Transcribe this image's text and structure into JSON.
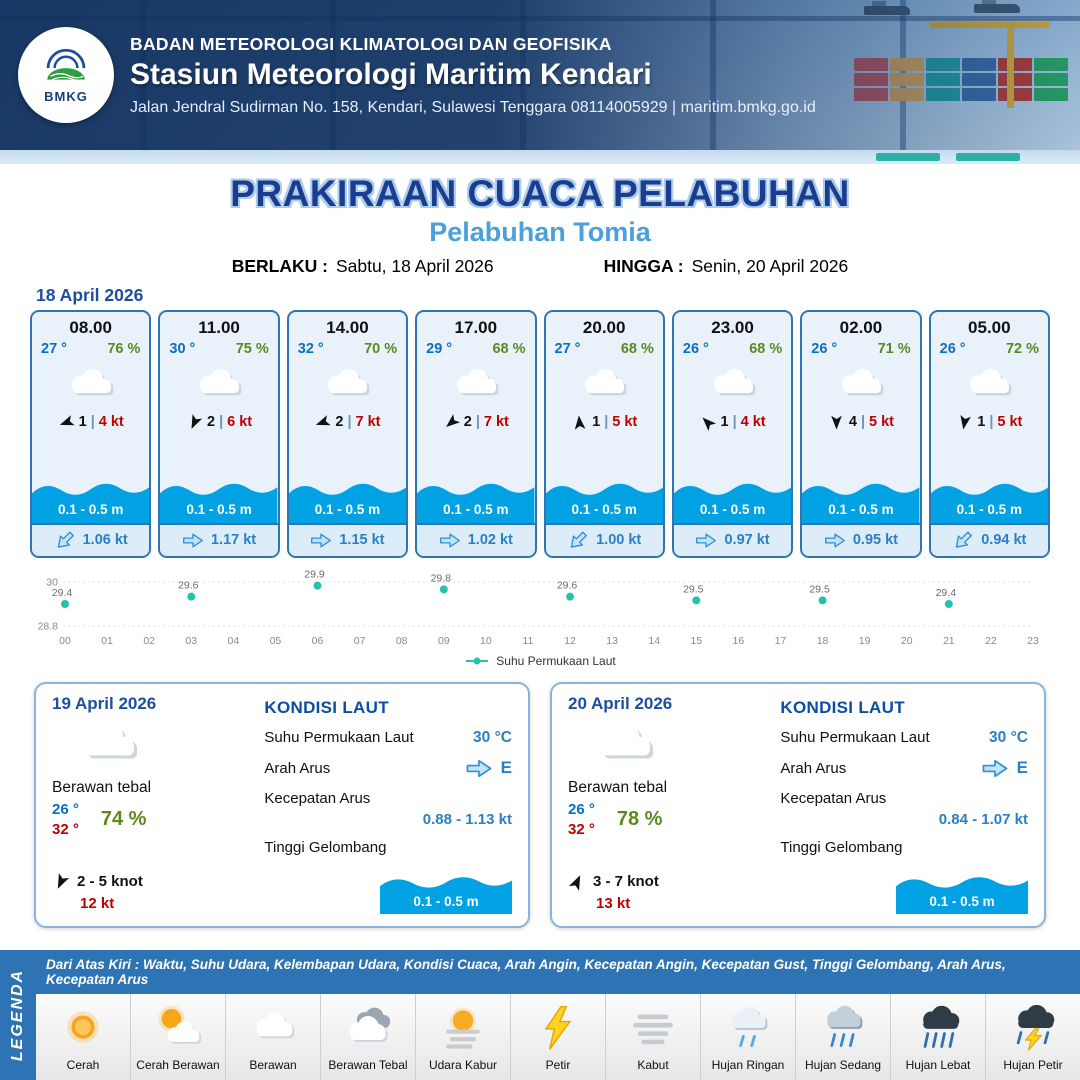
{
  "header": {
    "agency": "BADAN METEOROLOGI KLIMATOLOGI DAN GEOFISIKA",
    "station": "Stasiun Meteorologi Maritim Kendari",
    "address": "Jalan Jendral Sudirman No. 158, Kendari, Sulawesi Tenggara  08114005929 | maritim.bmkg.go.id",
    "logo": "BMKG"
  },
  "title": "PRAKIRAAN CUACA PELABUHAN",
  "subtitle": "Pelabuhan Tomia",
  "valid": {
    "berlaku_label": "BERLAKU :",
    "berlaku": "Sabtu, 18 April 2026",
    "hingga_label": "HINGGA :",
    "hingga": "Senin, 20 April 2026"
  },
  "hourly_date": "18 April 2026",
  "misc": {
    "pipe": "|"
  },
  "hourly": [
    {
      "time": "08.00",
      "temp": "27 °",
      "rh": "76 %",
      "wind_val": "1",
      "wind_spd": "4 kt",
      "wave": "0.1 - 0.5 m",
      "cur": "1.06 kt",
      "wind_rot": 250,
      "cur_rot": 135
    },
    {
      "time": "11.00",
      "temp": "30 °",
      "rh": "75 %",
      "wind_val": "2",
      "wind_spd": "6 kt",
      "wave": "0.1 - 0.5 m",
      "cur": "1.17 kt",
      "wind_rot": 205,
      "cur_rot": 0
    },
    {
      "time": "14.00",
      "temp": "32 °",
      "rh": "70 %",
      "wind_val": "2",
      "wind_spd": "7 kt",
      "wave": "0.1 - 0.5 m",
      "cur": "1.15 kt",
      "wind_rot": 250,
      "cur_rot": 0
    },
    {
      "time": "17.00",
      "temp": "29 °",
      "rh": "68 %",
      "wind_val": "2",
      "wind_spd": "7 kt",
      "wave": "0.1 - 0.5 m",
      "cur": "1.02 kt",
      "wind_rot": 230,
      "cur_rot": 0
    },
    {
      "time": "20.00",
      "temp": "27 °",
      "rh": "68 %",
      "wind_val": "1",
      "wind_spd": "5 kt",
      "wave": "0.1 - 0.5 m",
      "cur": "1.00 kt",
      "wind_rot": 355,
      "cur_rot": 135
    },
    {
      "time": "23.00",
      "temp": "26 °",
      "rh": "68 %",
      "wind_val": "1",
      "wind_spd": "4 kt",
      "wave": "0.1 - 0.5 m",
      "cur": "0.97 kt",
      "wind_rot": 315,
      "cur_rot": 0
    },
    {
      "time": "02.00",
      "temp": "26 °",
      "rh": "71 %",
      "wind_val": "4",
      "wind_spd": "5 kt",
      "wave": "0.1 - 0.5 m",
      "cur": "0.95 kt",
      "wind_rot": 180,
      "cur_rot": 0
    },
    {
      "time": "05.00",
      "temp": "26 °",
      "rh": "72 %",
      "wind_val": "1",
      "wind_spd": "5 kt",
      "wave": "0.1 - 0.5 m",
      "cur": "0.94 kt",
      "wind_rot": 190,
      "cur_rot": 135
    }
  ],
  "chart_data": {
    "type": "scatter",
    "series": [
      {
        "name": "Suhu Permukaan Laut",
        "x": [
          0,
          3,
          6,
          9,
          12,
          15,
          18,
          21
        ],
        "values": [
          29.4,
          29.6,
          29.9,
          29.8,
          29.6,
          29.5,
          29.5,
          29.4
        ]
      }
    ],
    "x_ticks": [
      "00",
      "01",
      "02",
      "03",
      "04",
      "05",
      "06",
      "07",
      "08",
      "09",
      "10",
      "11",
      "12",
      "13",
      "14",
      "15",
      "16",
      "17",
      "18",
      "19",
      "20",
      "21",
      "22",
      "23"
    ],
    "ylim": [
      28.8,
      30
    ],
    "y_ticks": [
      28.8,
      30
    ],
    "point_color": "#25c1ae",
    "grid": true,
    "legend_position": "bottom"
  },
  "daily": [
    {
      "date": "19 April 2026",
      "cond": "Berawan tebal",
      "tmin": "26 °",
      "tmax": "32 °",
      "rh": "74 %",
      "wind": "2  - 5 knot",
      "gust": "12 kt",
      "wind_rot": 205,
      "sea": {
        "title": "KONDISI LAUT",
        "sst_label": "Suhu Permukaan Laut",
        "sst": "30 °C",
        "arah_label": "Arah Arus",
        "arah": "E",
        "arah_rot": 0,
        "kec_label": "Kecepatan Arus",
        "kec": "0.88 - 1.13 kt",
        "gel_label": "Tinggi Gelombang",
        "gel": "0.1 - 0.5 m"
      }
    },
    {
      "date": "20 April 2026",
      "cond": "Berawan tebal",
      "tmin": "26 °",
      "tmax": "32 °",
      "rh": "78 %",
      "wind": "3  - 7 knot",
      "gust": "13 kt",
      "wind_rot": 25,
      "sea": {
        "title": "KONDISI LAUT",
        "sst_label": "Suhu Permukaan Laut",
        "sst": "30 °C",
        "arah_label": "Arah Arus",
        "arah": "E",
        "arah_rot": 0,
        "kec_label": "Kecepatan Arus",
        "kec": "0.84 - 1.07 kt",
        "gel_label": "Tinggi Gelombang",
        "gel": "0.1 - 0.5 m"
      }
    }
  ],
  "legend": {
    "side": "LEGENDA",
    "note": "Dari Atas Kiri : Waktu, Suhu Udara, Kelembapan Udara, Kondisi Cuaca, Arah Angin, Kecepatan Angin, Kecepatan Gust, Tinggi Gelombang, Arah Arus, Kecepatan Arus",
    "items": [
      {
        "label": "Cerah"
      },
      {
        "label": "Cerah Berawan"
      },
      {
        "label": "Berawan"
      },
      {
        "label": "Berawan Tebal"
      },
      {
        "label": "Udara Kabur"
      },
      {
        "label": "Petir"
      },
      {
        "label": "Kabut"
      },
      {
        "label": "Hujan Ringan"
      },
      {
        "label": "Hujan Sedang"
      },
      {
        "label": "Hujan Lebat"
      },
      {
        "label": "Hujan Petir"
      }
    ]
  },
  "colors": {
    "accent_blue": "#2f74b5",
    "title_navy": "#1c3c8f",
    "subtitle_blue": "#4aa0da",
    "wave_blue": "#00a2e3",
    "temp_blue": "#0a6fc2",
    "humidity_green": "#5a8a1e",
    "speed_red": "#c00000",
    "sst_teal": "#25c1ae"
  }
}
